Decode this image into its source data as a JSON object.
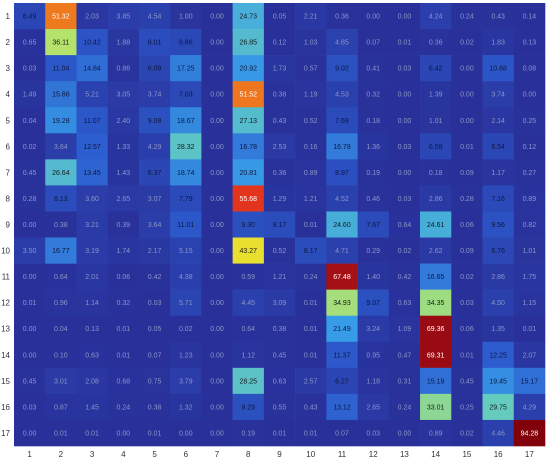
{
  "chart_data": {
    "type": "heatmap",
    "title": "",
    "xlabel": "",
    "ylabel": "",
    "x_categories": [
      "1",
      "2",
      "3",
      "4",
      "5",
      "6",
      "7",
      "8",
      "9",
      "10",
      "11",
      "12",
      "13",
      "14",
      "15",
      "16",
      "17"
    ],
    "y_categories": [
      "1",
      "2",
      "3",
      "4",
      "5",
      "6",
      "7",
      "8",
      "9",
      "10",
      "11",
      "12",
      "13",
      "14",
      "15",
      "16",
      "17"
    ],
    "value_range": [
      0,
      100
    ],
    "colormap": "jet",
    "grid": false,
    "values": [
      [
        6.49,
        51.32,
        2.03,
        3.85,
        4.54,
        1.0,
        0.0,
        24.73,
        0.05,
        2.21,
        0.36,
        0.0,
        0.0,
        4.24,
        0.24,
        0.43,
        0.14
      ],
      [
        0.65,
        36.11,
        10.42,
        1.88,
        8.01,
        6.86,
        0.0,
        26.85,
        0.12,
        1.03,
        4.85,
        0.07,
        0.01,
        0.36,
        0.02,
        1.83,
        0.13
      ],
      [
        0.03,
        11.04,
        14.84,
        0.86,
        6.09,
        17.25,
        0.0,
        20.92,
        1.73,
        0.57,
        9.02,
        0.41,
        0.03,
        6.42,
        0.0,
        10.68,
        0.08
      ],
      [
        1.49,
        15.86,
        5.21,
        3.05,
        3.74,
        7.03,
        0.0,
        51.52,
        0.38,
        1.19,
        4.53,
        0.32,
        0.0,
        1.39,
        0.0,
        3.74,
        0.0
      ],
      [
        0.04,
        19.28,
        11.07,
        2.4,
        9.08,
        18.67,
        0.0,
        27.13,
        0.43,
        0.52,
        7.69,
        0.18,
        0.0,
        1.01,
        0.0,
        2.14,
        0.25
      ],
      [
        0.02,
        3.64,
        12.57,
        1.33,
        4.29,
        28.32,
        0.0,
        16.78,
        2.53,
        0.16,
        16.78,
        1.36,
        0.03,
        6.58,
        0.01,
        6.54,
        0.12
      ],
      [
        0.45,
        26.64,
        13.45,
        1.43,
        6.37,
        18.74,
        0.0,
        20.81,
        0.36,
        0.89,
        8.97,
        0.19,
        0.0,
        0.18,
        0.09,
        1.17,
        0.27
      ],
      [
        0.28,
        8.13,
        3.6,
        2.65,
        3.07,
        7.79,
        0.0,
        55.68,
        1.29,
        1.21,
        4.52,
        0.46,
        0.03,
        2.86,
        0.28,
        7.16,
        0.89
      ],
      [
        0.0,
        0.38,
        3.21,
        0.39,
        3.64,
        11.01,
        0.0,
        9.3,
        8.17,
        0.01,
        24.6,
        7.67,
        0.64,
        24.61,
        0.06,
        9.56,
        0.82
      ],
      [
        3.5,
        16.77,
        3.19,
        1.74,
        2.17,
        5.15,
        0.0,
        43.27,
        0.52,
        8.17,
        4.71,
        0.29,
        0.02,
        2.62,
        0.09,
        6.76,
        1.01
      ],
      [
        0.0,
        0.64,
        2.01,
        0.06,
        0.42,
        4.38,
        0.0,
        0.59,
        1.21,
        0.24,
        67.48,
        1.4,
        0.42,
        16.65,
        0.02,
        2.86,
        1.75
      ],
      [
        0.01,
        0.96,
        1.14,
        0.32,
        0.03,
        5.71,
        0.0,
        4.45,
        3.09,
        0.01,
        34.93,
        9.07,
        0.63,
        34.35,
        0.03,
        4.5,
        1.15
      ],
      [
        0.0,
        0.04,
        0.13,
        0.01,
        0.05,
        0.02,
        0.0,
        0.64,
        0.38,
        0.01,
        21.49,
        3.24,
        1.09,
        69.36,
        0.06,
        1.35,
        0.01
      ],
      [
        0.0,
        0.1,
        0.63,
        0.01,
        0.07,
        1.23,
        0.0,
        1.12,
        0.45,
        0.01,
        11.37,
        0.95,
        0.47,
        69.31,
        0.01,
        12.25,
        2.07
      ],
      [
        0.45,
        3.01,
        2.08,
        0.68,
        0.75,
        3.79,
        0.0,
        28.25,
        0.63,
        2.57,
        6.27,
        1.18,
        0.31,
        15.19,
        0.45,
        19.45,
        15.17
      ],
      [
        0.03,
        0.87,
        1.45,
        0.24,
        0.38,
        1.32,
        0.0,
        9.29,
        0.55,
        0.43,
        13.12,
        2.65,
        0.24,
        33.01,
        0.25,
        29.75,
        4.29
      ],
      [
        0.0,
        0.01,
        0.01,
        0.0,
        0.01,
        0.0,
        0.0,
        0.19,
        0.01,
        0.01,
        0.07,
        0.03,
        0.0,
        0.89,
        0.02,
        4.46,
        94.28
      ]
    ]
  }
}
